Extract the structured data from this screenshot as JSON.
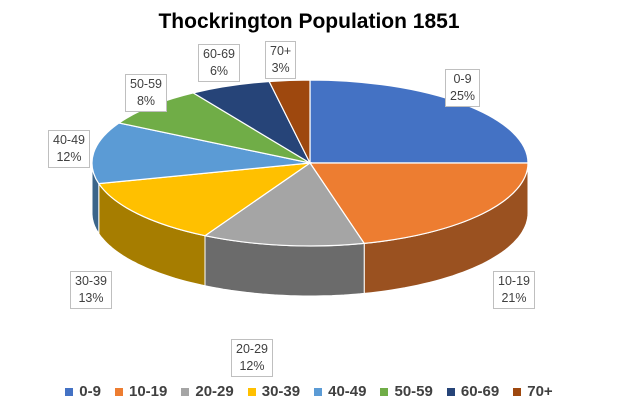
{
  "chart_data": {
    "type": "pie",
    "title": "Thockrington Population 1851",
    "categories": [
      "0-9",
      "10-19",
      "20-29",
      "30-39",
      "40-49",
      "50-59",
      "60-69",
      "70+"
    ],
    "values": [
      25,
      21,
      12,
      13,
      12,
      8,
      6,
      3
    ],
    "value_format": "percent",
    "colors": [
      "#4472c4",
      "#ed7d31",
      "#a5a5a5",
      "#ffc000",
      "#5b9bd5",
      "#70ad47",
      "#264478",
      "#9e480e"
    ],
    "style": "3d",
    "legend_position": "bottom",
    "data_labels": [
      {
        "category": "0-9",
        "value": "25%"
      },
      {
        "category": "10-19",
        "value": "21%"
      },
      {
        "category": "20-29",
        "value": "12%"
      },
      {
        "category": "30-39",
        "value": "13%"
      },
      {
        "category": "40-49",
        "value": "12%"
      },
      {
        "category": "50-59",
        "value": "8%"
      },
      {
        "category": "60-69",
        "value": "6%"
      },
      {
        "category": "70+",
        "value": "3%"
      }
    ]
  },
  "labels": {
    "l0": {
      "cat": "0-9",
      "pct": "25%"
    },
    "l1": {
      "cat": "10-19",
      "pct": "21%"
    },
    "l2": {
      "cat": "20-29",
      "pct": "12%"
    },
    "l3": {
      "cat": "30-39",
      "pct": "13%"
    },
    "l4": {
      "cat": "40-49",
      "pct": "12%"
    },
    "l5": {
      "cat": "50-59",
      "pct": "8%"
    },
    "l6": {
      "cat": "60-69",
      "pct": "6%"
    },
    "l7": {
      "cat": "70+",
      "pct": "3%"
    }
  }
}
